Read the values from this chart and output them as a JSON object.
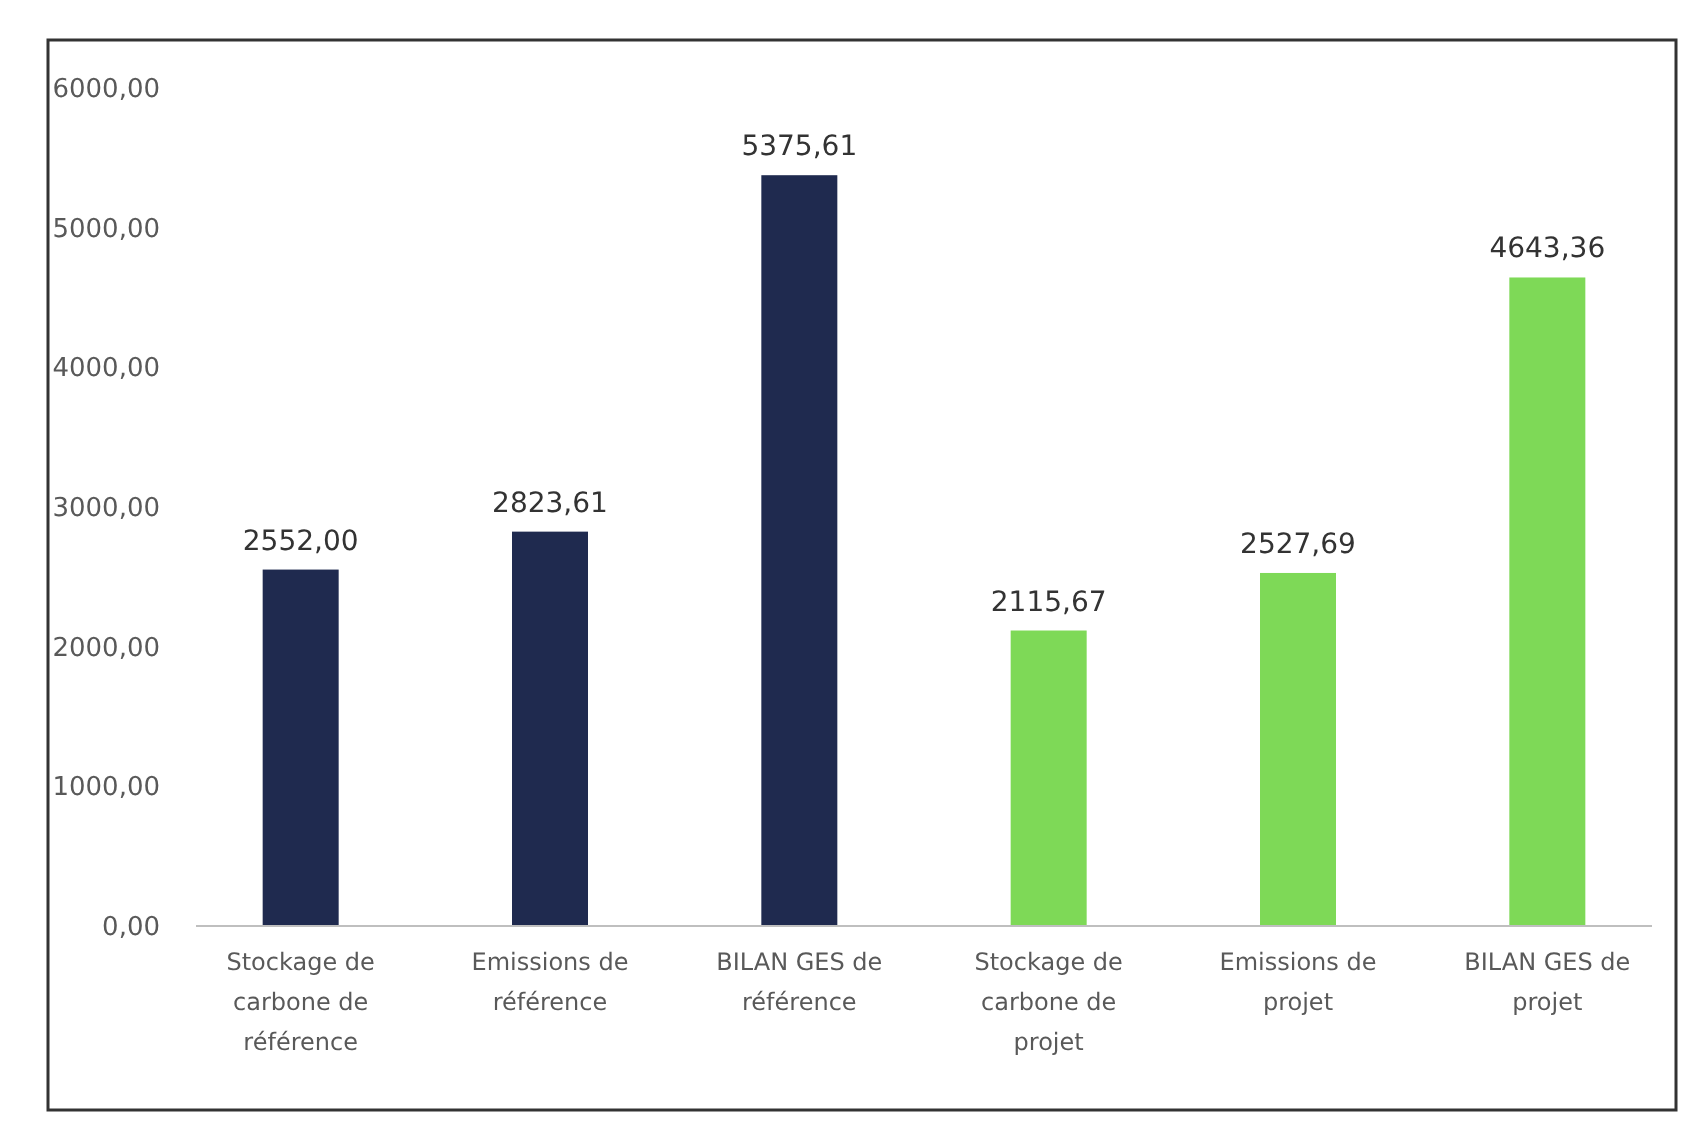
{
  "chart_data": {
    "type": "bar",
    "categories": [
      "Stockage de carbone de référence",
      "Emissions de référence",
      "BILAN GES de référence",
      "Stockage de carbone de projet",
      "Emissions de projet",
      "BILAN GES de projet"
    ],
    "values": [
      2552.0,
      2823.61,
      5375.61,
      2115.67,
      2527.69,
      4643.36
    ],
    "colors": [
      "#1f2a4f",
      "#1f2a4f",
      "#1f2a4f",
      "#7ed957",
      "#7ed957",
      "#7ed957"
    ],
    "value_labels": [
      "2552,00",
      "2823,61",
      "5375,61",
      "2115,67",
      "2527,69",
      "4643,36"
    ],
    "ylim": [
      0,
      6000
    ],
    "yticks": [
      {
        "value": 0,
        "label": "0,00"
      },
      {
        "value": 1000,
        "label": "1000,00"
      },
      {
        "value": 2000,
        "label": "2000,00"
      },
      {
        "value": 3000,
        "label": "3000,00"
      },
      {
        "value": 4000,
        "label": "4000,00"
      },
      {
        "value": 5000,
        "label": "5000,00"
      },
      {
        "value": 6000,
        "label": "6000,00"
      }
    ],
    "grid": false
  }
}
